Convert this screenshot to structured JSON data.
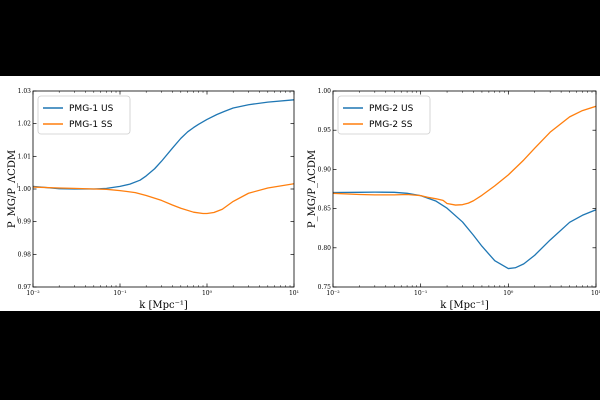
{
  "figure": {
    "background": "#000000",
    "panel_background": "#ffffff",
    "colors": {
      "series1": "#1f77b4",
      "series2": "#ff7f0e"
    }
  },
  "chart_data": [
    {
      "type": "line",
      "xscale": "log",
      "xlim": [
        0.01,
        10
      ],
      "ylim": [
        0.97,
        1.03
      ],
      "xlabel": "k [Mpc⁻¹]",
      "ylabel": "P_MG/P_ΛCDM",
      "xticks": [
        {
          "value": 0.01,
          "label": "10⁻²"
        },
        {
          "value": 0.1,
          "label": "10⁻¹"
        },
        {
          "value": 1,
          "label": "10⁰"
        },
        {
          "value": 10,
          "label": "10¹"
        }
      ],
      "yticks": [
        0.97,
        0.98,
        0.99,
        1.0,
        1.01,
        1.02,
        1.03
      ],
      "ytick_labels": [
        "0.97",
        "0.98",
        "0.99",
        "1.00",
        "1.01",
        "1.02",
        "1.03"
      ],
      "legend": "top-left",
      "grid": false,
      "series": [
        {
          "name": "PMG-1 US",
          "color": "#1f77b4",
          "x": [
            0.01,
            0.02,
            0.03,
            0.05,
            0.07,
            0.1,
            0.13,
            0.17,
            0.2,
            0.25,
            0.3,
            0.4,
            0.5,
            0.6,
            0.7,
            0.8,
            1.0,
            1.3,
            1.6,
            2.0,
            3.0,
            5.0,
            10.0
          ],
          "y": [
            1.0008,
            1.0001,
            1.0,
            1.0,
            1.0002,
            1.0008,
            1.0015,
            1.0027,
            1.004,
            1.0062,
            1.0085,
            1.0125,
            1.0155,
            1.0175,
            1.0188,
            1.0198,
            1.0213,
            1.0228,
            1.0238,
            1.0248,
            1.0258,
            1.0266,
            1.0273
          ]
        },
        {
          "name": "PMG-1 SS",
          "color": "#ff7f0e",
          "x": [
            0.01,
            0.02,
            0.03,
            0.05,
            0.07,
            0.1,
            0.15,
            0.2,
            0.3,
            0.4,
            0.5,
            0.7,
            0.9,
            1.0,
            1.2,
            1.5,
            2.0,
            3.0,
            5.0,
            10.0
          ],
          "y": [
            1.0006,
            1.0003,
            1.0002,
            1.0,
            0.9999,
            0.9995,
            0.9989,
            0.998,
            0.9965,
            0.9951,
            0.9941,
            0.9929,
            0.9925,
            0.9925,
            0.9928,
            0.9938,
            0.9962,
            0.9987,
            1.0003,
            1.0016
          ]
        }
      ]
    },
    {
      "type": "line",
      "xscale": "log",
      "xlim": [
        0.01,
        10
      ],
      "ylim": [
        0.75,
        1.0
      ],
      "xlabel": "k [Mpc⁻¹]",
      "ylabel": "P_MG/P_ΛCDM",
      "xticks": [
        {
          "value": 0.01,
          "label": "10⁻²"
        },
        {
          "value": 0.1,
          "label": "10⁻¹"
        },
        {
          "value": 1,
          "label": "10⁰"
        },
        {
          "value": 10,
          "label": "10¹"
        }
      ],
      "yticks": [
        0.75,
        0.8,
        0.85,
        0.9,
        0.95,
        1.0
      ],
      "ytick_labels": [
        "0.75",
        "0.80",
        "0.85",
        "0.90",
        "0.95",
        "1.00"
      ],
      "legend": "top-left",
      "grid": false,
      "series": [
        {
          "name": "PMG-2 US",
          "color": "#1f77b4",
          "x": [
            0.01,
            0.02,
            0.03,
            0.05,
            0.07,
            0.1,
            0.15,
            0.2,
            0.3,
            0.4,
            0.5,
            0.7,
            1.0,
            1.2,
            1.5,
            2.0,
            3.0,
            5.0,
            7.0,
            10.0
          ],
          "y": [
            0.8705,
            0.8708,
            0.871,
            0.8708,
            0.8695,
            0.8665,
            0.8595,
            0.8505,
            0.833,
            0.816,
            0.802,
            0.7835,
            0.7735,
            0.7745,
            0.7795,
            0.7905,
            0.81,
            0.8325,
            0.8415,
            0.8485
          ]
        },
        {
          "name": "PMG-2 SS",
          "color": "#ff7f0e",
          "x": [
            0.01,
            0.02,
            0.03,
            0.05,
            0.07,
            0.1,
            0.12,
            0.15,
            0.18,
            0.2,
            0.25,
            0.3,
            0.35,
            0.4,
            0.5,
            0.7,
            1.0,
            1.5,
            2.0,
            3.0,
            5.0,
            7.0,
            10.0
          ],
          "y": [
            0.8695,
            0.868,
            0.8675,
            0.8675,
            0.868,
            0.8665,
            0.8645,
            0.8625,
            0.8605,
            0.8565,
            0.8545,
            0.855,
            0.857,
            0.86,
            0.867,
            0.879,
            0.893,
            0.912,
            0.927,
            0.9475,
            0.967,
            0.975,
            0.9805
          ]
        }
      ]
    }
  ]
}
